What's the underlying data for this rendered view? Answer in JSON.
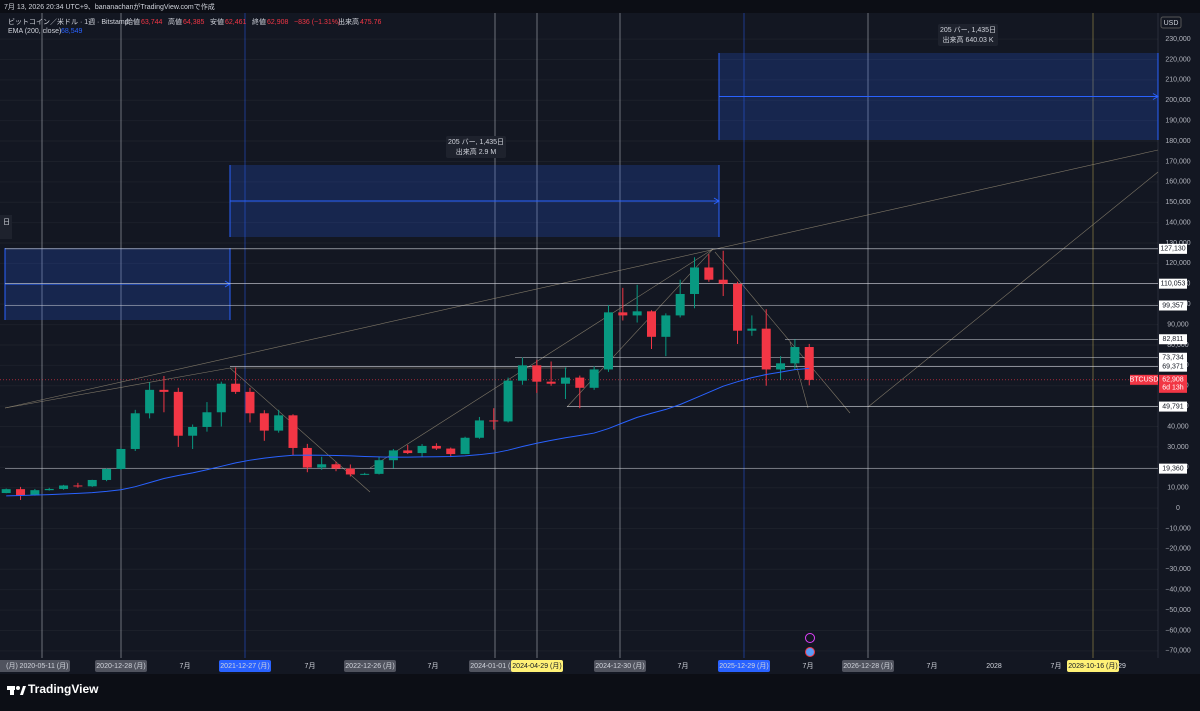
{
  "header": {
    "caption": "7月 13, 2026 20:34 UTC+9、bananachanがTradingView.comで作成",
    "symbol": "ビットコイン／米ドル · 1週 · Bitstamp",
    "ohlc": [
      {
        "name": "始値",
        "value": "63,744"
      },
      {
        "name": "高値",
        "value": "64,385"
      },
      {
        "name": "安値",
        "value": "62,461"
      },
      {
        "name": "終値",
        "value": "62,908"
      }
    ],
    "change": "−836 (−1.31%)",
    "volume_name": "出来高",
    "volume": "475.76",
    "indicator": "EMA (200, close)",
    "indicator_value": "68,549"
  },
  "chart_data": {
    "type": "candlestick",
    "currency": "USD",
    "ylim": [
      -73500,
      242300
    ],
    "yticks": [
      {
        "value": 230000,
        "label": "230,000"
      },
      {
        "value": 220000,
        "label": "220,000"
      },
      {
        "value": 210000,
        "label": "210,000"
      },
      {
        "value": 200000,
        "label": "200,000"
      },
      {
        "value": 190000,
        "label": "190,000"
      },
      {
        "value": 180000,
        "label": "180,000"
      },
      {
        "value": 170000,
        "label": "170,000"
      },
      {
        "value": 160000,
        "label": "160,000"
      },
      {
        "value": 150000,
        "label": "150,000"
      },
      {
        "value": 140000,
        "label": "140,000"
      },
      {
        "value": 130000,
        "label": "130,000"
      },
      {
        "value": 120000,
        "label": "120,000"
      },
      {
        "value": 110000,
        "label": "110,000"
      },
      {
        "value": 100000,
        "label": "100,000"
      },
      {
        "value": 90000,
        "label": "90,000"
      },
      {
        "value": 80000,
        "label": "80,000"
      },
      {
        "value": 70000,
        "label": "70,000"
      },
      {
        "value": 60000,
        "label": "60,000"
      },
      {
        "value": 50000,
        "label": "50,000"
      },
      {
        "value": 40000,
        "label": "40,000"
      },
      {
        "value": 30000,
        "label": "30,000"
      },
      {
        "value": 20000,
        "label": "20,000"
      },
      {
        "value": 10000,
        "label": "10,000"
      },
      0,
      {
        "value": -10000,
        "label": "−10,000"
      },
      {
        "value": -20000,
        "label": "−20,000"
      },
      {
        "value": -30000,
        "label": "−30,000"
      },
      {
        "value": -40000,
        "label": "−40,000"
      },
      {
        "value": -50000,
        "label": "−50,000"
      },
      {
        "value": -60000,
        "label": "−60,000"
      },
      {
        "value": -70000,
        "label": "−70,000"
      }
    ],
    "x_labels": [
      "(月)",
      "2020-05-11 (月)",
      "2020-12-28 (月)",
      "7月",
      "2021-12-27 (月)",
      "7月",
      "2022-12-26 (月)",
      "7月",
      "2024-01-01 (月)",
      "2024-04-29 (月)",
      "2024-12-30 (月)",
      "7月",
      "2025-12-29 (月)",
      "7月",
      "2026-12-28 (月)",
      "7月",
      "2028",
      "7月",
      "2028-10-16 (月)",
      "29"
    ],
    "candles": [
      [
        7400,
        9600,
        7300,
        9300
      ],
      [
        9300,
        10400,
        4000,
        6200
      ],
      [
        6200,
        9400,
        6100,
        8800
      ],
      [
        8800,
        10000,
        8600,
        9400
      ],
      [
        9400,
        11400,
        9000,
        11100
      ],
      [
        11100,
        12400,
        10000,
        10700
      ],
      [
        10700,
        13900,
        10400,
        13800
      ],
      [
        13800,
        19500,
        13200,
        19200
      ],
      [
        19200,
        29300,
        18700,
        29000
      ],
      [
        29000,
        48200,
        28000,
        46500
      ],
      [
        46500,
        61700,
        44000,
        58000
      ],
      [
        58000,
        64800,
        47000,
        57000
      ],
      [
        57000,
        59000,
        30000,
        35500
      ],
      [
        35500,
        41000,
        29000,
        39800
      ],
      [
        39800,
        52000,
        37500,
        47000
      ],
      [
        47000,
        62000,
        40000,
        61000
      ],
      [
        61000,
        69000,
        56000,
        57000
      ],
      [
        57000,
        59000,
        42000,
        46500
      ],
      [
        46500,
        48000,
        33000,
        38000
      ],
      [
        38000,
        48200,
        37000,
        45500
      ],
      [
        45500,
        46000,
        26000,
        29500
      ],
      [
        29500,
        31500,
        17600,
        19900
      ],
      [
        19900,
        25200,
        18800,
        21500
      ],
      [
        21500,
        22700,
        18100,
        19400
      ],
      [
        19400,
        21400,
        15500,
        16500
      ],
      [
        16500,
        17300,
        16200,
        16800
      ],
      [
        16800,
        25200,
        16500,
        23500
      ],
      [
        23500,
        29000,
        19500,
        28300
      ],
      [
        28300,
        31000,
        26500,
        27000
      ],
      [
        27000,
        31400,
        25000,
        30500
      ],
      [
        30500,
        31800,
        28500,
        29200
      ],
      [
        29200,
        29700,
        25000,
        26500
      ],
      [
        26500,
        35000,
        26500,
        34500
      ],
      [
        34500,
        44700,
        34000,
        43000
      ],
      [
        43000,
        49000,
        38500,
        42500
      ],
      [
        42500,
        64000,
        42000,
        62500
      ],
      [
        62500,
        73800,
        60500,
        70000
      ],
      [
        70000,
        72700,
        56500,
        62000
      ],
      [
        62000,
        71900,
        60000,
        61000
      ],
      [
        61000,
        69000,
        53500,
        64000
      ],
      [
        64000,
        65000,
        49000,
        59000
      ],
      [
        59000,
        69500,
        58000,
        68000
      ],
      [
        68000,
        99500,
        66800,
        96000
      ],
      [
        96000,
        108000,
        92000,
        94500
      ],
      [
        94500,
        109500,
        91000,
        96500
      ],
      [
        96500,
        97000,
        78000,
        84000
      ],
      [
        84000,
        95500,
        74500,
        94500
      ],
      [
        94500,
        112000,
        93500,
        105000
      ],
      [
        105000,
        123000,
        98000,
        118000
      ],
      [
        118000,
        124500,
        111000,
        112000
      ],
      [
        112000,
        126200,
        104000,
        110000
      ],
      [
        110000,
        111000,
        80500,
        87000
      ],
      [
        87000,
        94500,
        84500,
        88000
      ],
      [
        88000,
        97500,
        60000,
        68000
      ],
      [
        68000,
        74500,
        63000,
        71000
      ],
      [
        71000,
        82811,
        68000,
        79000
      ],
      [
        79000,
        80500,
        60200,
        62908
      ]
    ],
    "ema": {
      "color": "#2962ff",
      "values": [
        6000,
        6200,
        6400,
        6600,
        6900,
        7200,
        7600,
        8200,
        9000,
        10500,
        12500,
        14500,
        16000,
        17300,
        18800,
        20500,
        22200,
        23500,
        24500,
        25300,
        25900,
        26000,
        25900,
        25800,
        25600,
        25300,
        25100,
        25000,
        25000,
        25100,
        25200,
        25300,
        25600,
        26200,
        27000,
        28400,
        30200,
        31800,
        33200,
        34500,
        35600,
        36800,
        39000,
        41800,
        44500,
        46500,
        48400,
        50800,
        53800,
        56800,
        59800,
        62000,
        64000,
        65500,
        66700,
        67900,
        68549
      ]
    },
    "up_color": "#089981",
    "down_color": "#f23645",
    "levels": [
      {
        "value": 127130,
        "label": "127,130"
      },
      {
        "value": 110053,
        "label": "110,053"
      },
      {
        "value": 99357,
        "label": "99,357"
      },
      {
        "value": 82811,
        "label": "82,811"
      },
      {
        "value": 73734,
        "label": "73,734"
      },
      {
        "value": 69371,
        "label": "69,371"
      },
      {
        "value": 49791,
        "label": "49,791"
      },
      {
        "value": 19360,
        "label": "19,360"
      }
    ],
    "last_price": {
      "name": "BTCUSD",
      "value": 62908,
      "label": "62,908",
      "countdown": "6d 13h"
    }
  },
  "drawings": {
    "ranges": [
      {
        "bars": "205 バー, 1,435日",
        "volume": "出来高 2.9 M"
      },
      {
        "bars": "205 バー, 1,435日",
        "volume": "出来高 640.03 K"
      }
    ],
    "cut_label": "日"
  },
  "footer": {
    "brand": "TradingView"
  }
}
